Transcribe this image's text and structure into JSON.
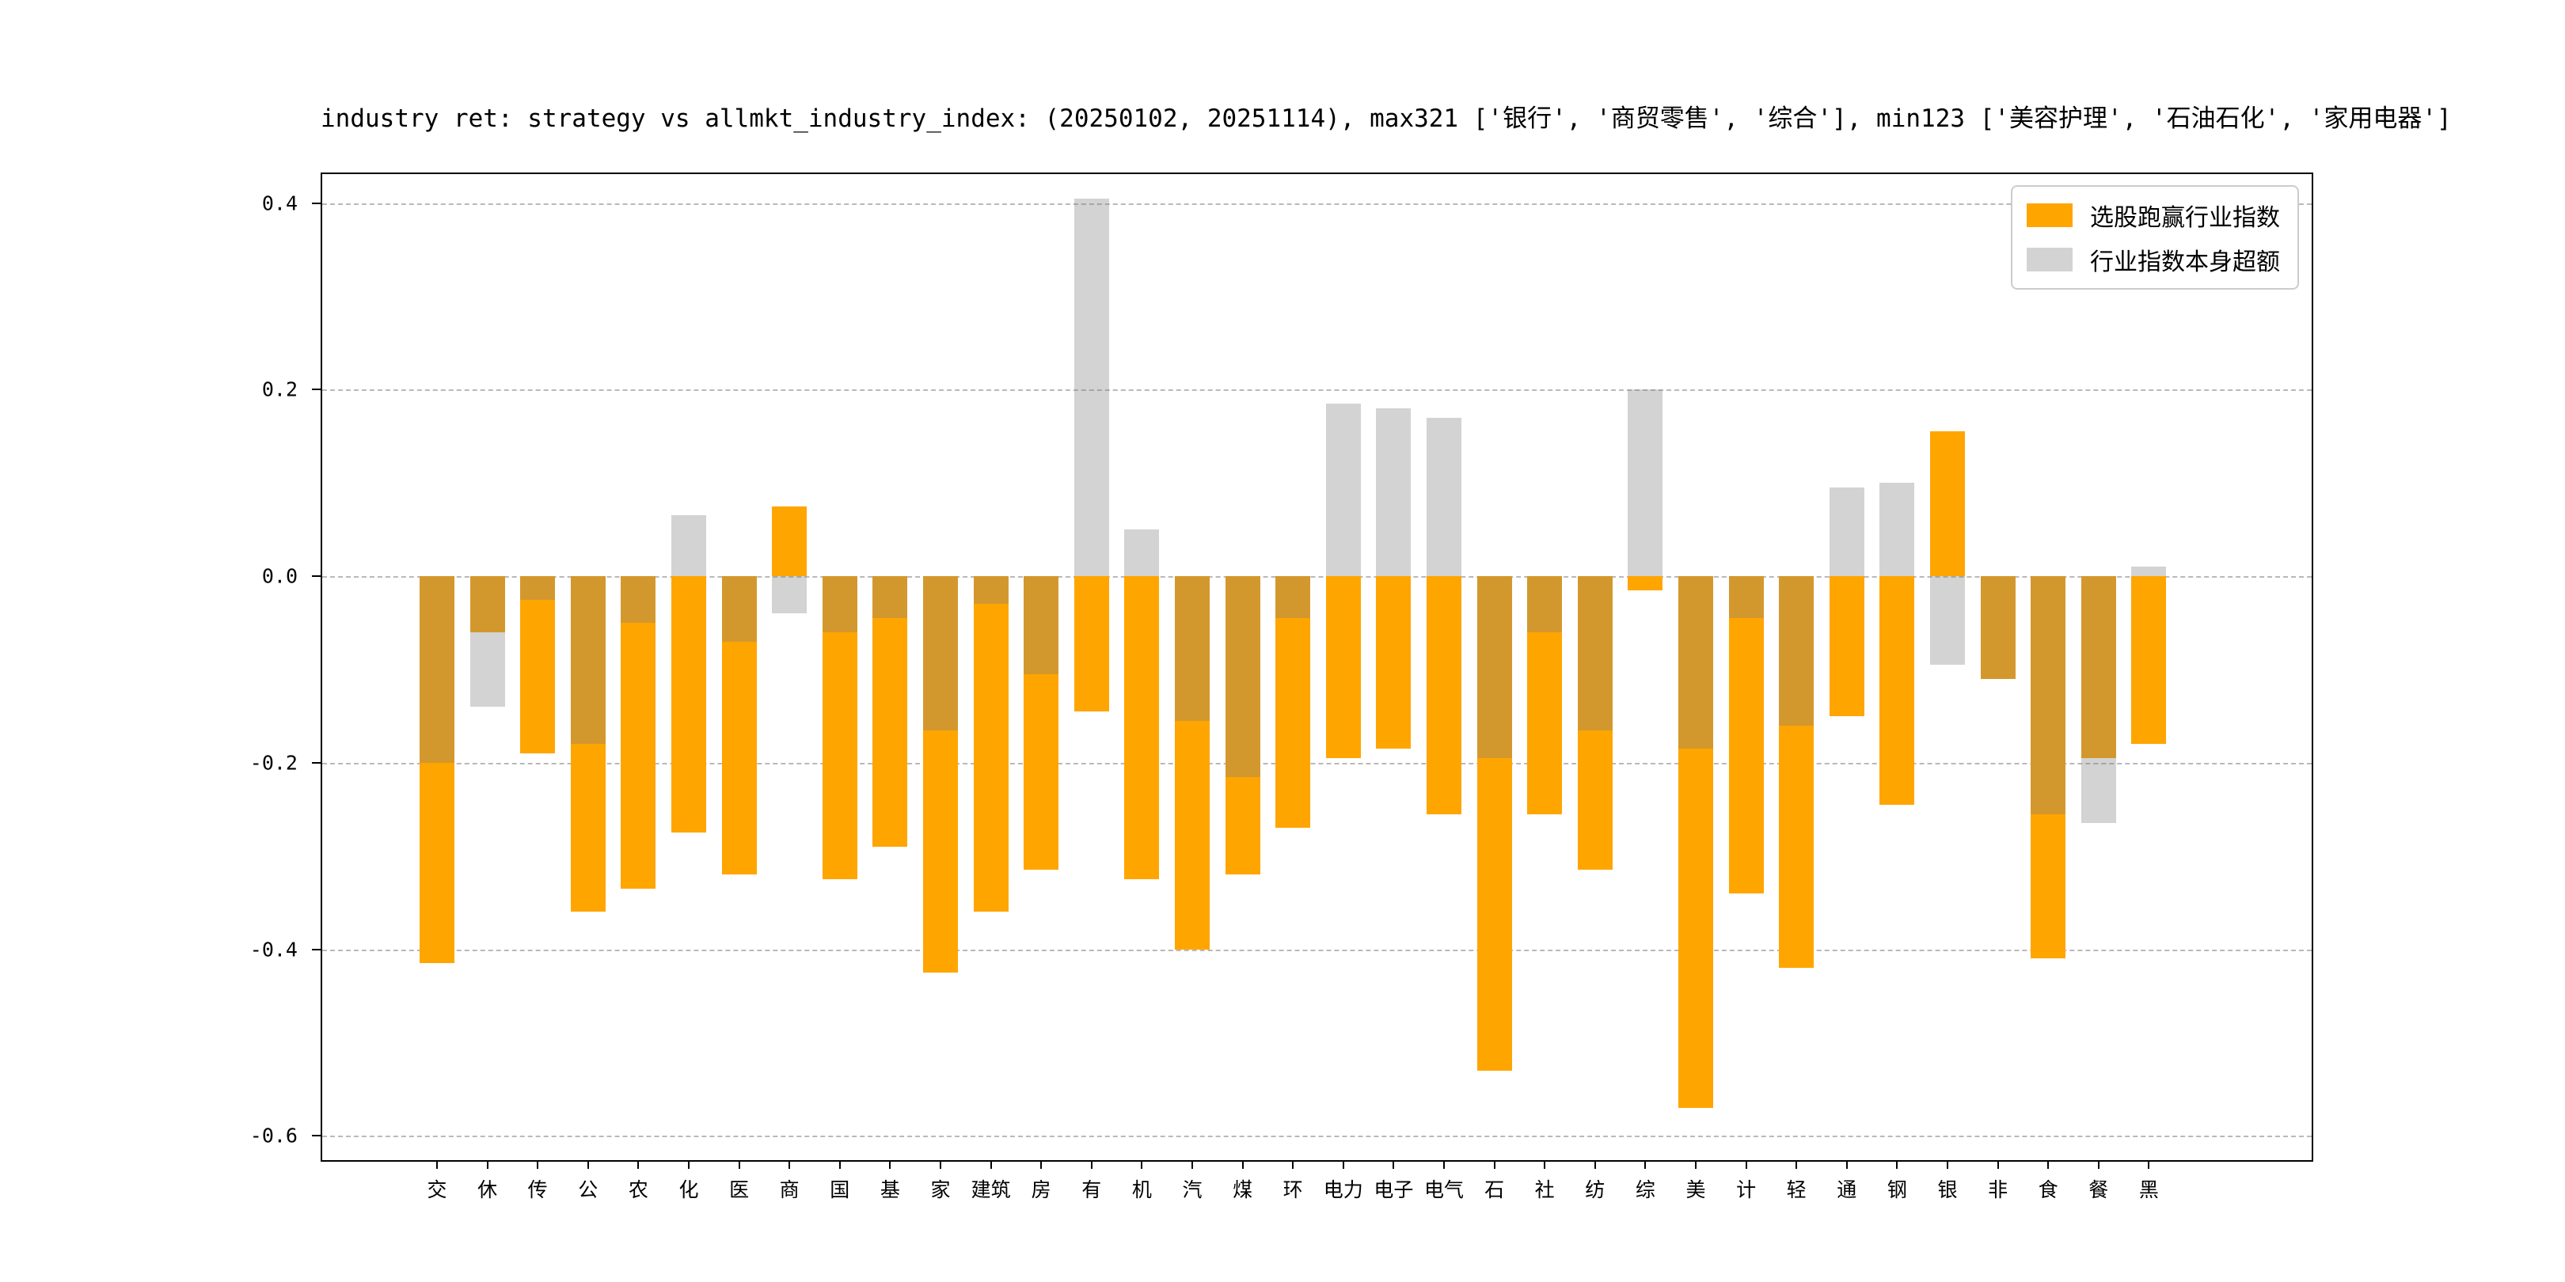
{
  "figure": {
    "background": "#ffffff"
  },
  "chart_data": {
    "type": "bar",
    "title": "industry ret: strategy vs allmkt_industry_index: (20250102, 20251114), max321 ['银行', '商贸零售', '综合'], min123 ['美容护理', '石油石化', '家用电器']",
    "xlabel": "",
    "ylabel": "",
    "grid": {
      "axis": "y",
      "style": "dashed",
      "color": "#b9b9b9"
    },
    "legend_position": "upper right",
    "ylim": [
      -0.626,
      0.431
    ],
    "yticks": [
      0.4,
      0.2,
      0.0,
      -0.2,
      -0.4,
      -0.6
    ],
    "categories": [
      "交",
      "休",
      "传",
      "公",
      "农",
      "化",
      "医",
      "商",
      "国",
      "基",
      "家",
      "建筑",
      "房",
      "有",
      "机",
      "汽",
      "煤",
      "环",
      "电力",
      "电子",
      "电气",
      "石",
      "社",
      "纺",
      "综",
      "美",
      "计",
      "轻",
      "通",
      "钢",
      "银",
      "非",
      "食",
      "餐",
      "黑"
    ],
    "series": [
      {
        "key": "strategy-vs-industry",
        "name": "选股跑赢行业指数",
        "color": "#FFA500",
        "alpha": 1,
        "values": [
          -0.415,
          -0.06,
          -0.19,
          -0.36,
          -0.335,
          -0.275,
          -0.32,
          0.075,
          -0.325,
          -0.29,
          -0.425,
          -0.36,
          -0.315,
          -0.145,
          -0.325,
          -0.4,
          -0.32,
          -0.27,
          -0.195,
          -0.185,
          -0.255,
          -0.53,
          -0.255,
          -0.315,
          -0.015,
          -0.57,
          -0.34,
          -0.42,
          -0.15,
          -0.245,
          0.155,
          -0.11,
          -0.41,
          -0.195,
          -0.18
        ]
      },
      {
        "key": "industry-index-excess",
        "name": "行业指数本身超额",
        "color": "#808080",
        "alpha": 0.35,
        "values": [
          -0.2,
          -0.14,
          -0.025,
          -0.18,
          -0.05,
          0.065,
          -0.07,
          -0.04,
          -0.06,
          -0.045,
          -0.165,
          -0.03,
          -0.105,
          0.405,
          0.05,
          -0.155,
          -0.215,
          -0.045,
          0.185,
          0.18,
          0.17,
          -0.195,
          -0.06,
          -0.165,
          0.2,
          -0.185,
          -0.045,
          -0.16,
          0.095,
          0.1,
          -0.095,
          -0.11,
          -0.255,
          -0.265,
          0.01
        ]
      }
    ]
  }
}
